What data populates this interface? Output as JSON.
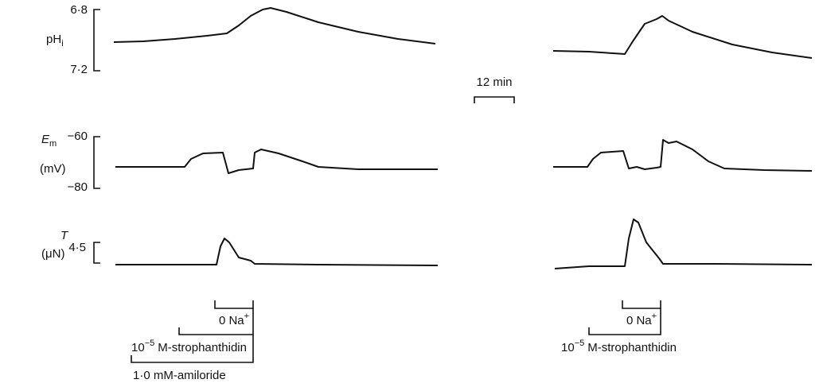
{
  "ph_axis": {
    "label": "pH",
    "label_sub": "i",
    "top": "6·8",
    "bottom": "7·2"
  },
  "em_axis": {
    "label": "E",
    "label_sub": "m",
    "unit": "(mV)",
    "top": "−60",
    "bottom": "−80"
  },
  "tension_axis": {
    "label": "T",
    "unit": "(μN)",
    "scale": "4·5"
  },
  "time_scale": "12 min",
  "left_panel": {
    "sodium": {
      "text": "0 Na",
      "sup": "+"
    },
    "strophanthidin": {
      "base": "10",
      "exp": "−5",
      "text": "M-strophanthidin"
    },
    "amiloride": "1·0 mM-amiloride"
  },
  "right_panel": {
    "sodium": {
      "text": "0 Na",
      "sup": "+"
    },
    "strophanthidin": {
      "base": "10",
      "exp": "−5",
      "text": "M-strophanthidin"
    }
  }
}
